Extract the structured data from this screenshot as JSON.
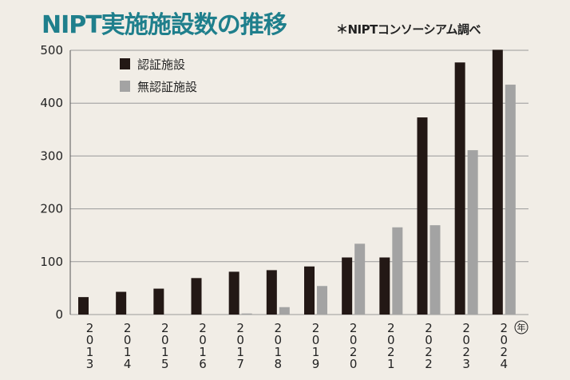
{
  "title": "NIPT実施施設数の推移",
  "source_note": "＊NIPTコンソーシアム調べ",
  "colors": {
    "certified": "#231815",
    "uncertified": "#a3a3a3",
    "title": "#1f7f8c",
    "background": "#f1ede6"
  },
  "chart_data": {
    "type": "bar",
    "title": "NIPT実施施設数の推移",
    "xlabel": "",
    "ylabel": "",
    "x_unit": "年",
    "categories": [
      "2013",
      "2014",
      "2015",
      "2016",
      "2017",
      "2018",
      "2019",
      "2020",
      "2021",
      "2022",
      "2023",
      "2024"
    ],
    "series": [
      {
        "name": "認証施設",
        "color": "#231815",
        "values": [
          33,
          43,
          49,
          69,
          81,
          84,
          91,
          108,
          108,
          373,
          477,
          501
        ]
      },
      {
        "name": "無認証施設",
        "color": "#a3a3a3",
        "values": [
          0,
          0,
          0,
          0,
          2,
          14,
          54,
          134,
          165,
          169,
          311,
          435
        ]
      }
    ],
    "ylim": [
      0,
      500
    ],
    "yticks": [
      0,
      100,
      200,
      300,
      400,
      500
    ],
    "grid": true,
    "legend_position": "top-left"
  }
}
